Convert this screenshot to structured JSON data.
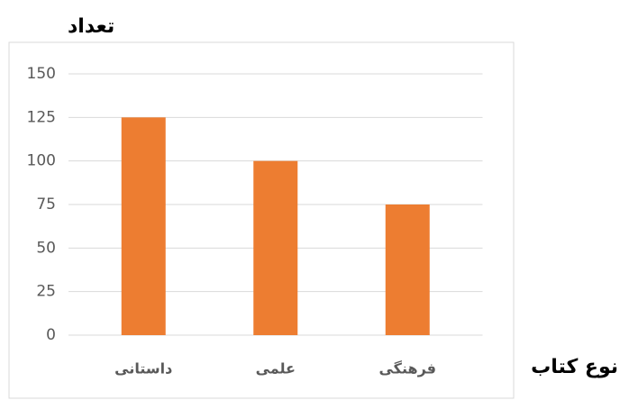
{
  "chart_data": {
    "type": "bar",
    "ylabel": "تعداد",
    "xlabel": "نوع کتاب",
    "categories": [
      "داستانی",
      "علمی",
      "فرهنگی"
    ],
    "values": [
      125,
      100,
      75
    ],
    "color": "#ed7d31",
    "ylim": [
      0,
      150
    ],
    "yticks": [
      0,
      25,
      50,
      75,
      100,
      125,
      150
    ],
    "grid": true
  }
}
